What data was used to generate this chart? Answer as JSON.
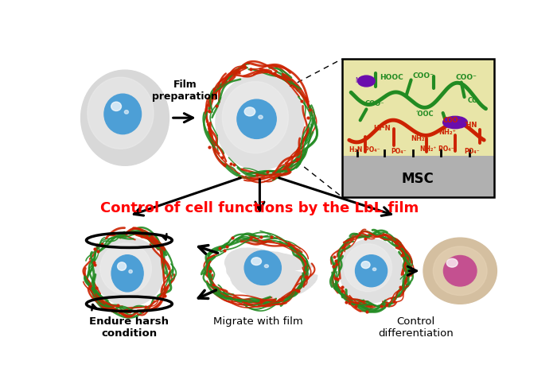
{
  "bg_color": "#ffffff",
  "title_text": "Control of cell functions by the LbL film",
  "title_color": "#ff0000",
  "title_fontsize": 13,
  "label_endure": "Endure harsh\ncondition",
  "label_migrate": "Migrate with film",
  "label_control": "Control\ndifferentiation",
  "label_film_prep": "Film\npreparation",
  "label_msc": "MSC",
  "cell_body_color": "#e0e0e0",
  "cell_nucleus_color": "#4d9fd6",
  "film_green": "#228B22",
  "film_red": "#cc2200",
  "arrow_color": "#111111",
  "inset_bg_top": "#e8e5a8",
  "inset_bg_bot": "#b0b0b0",
  "purple_color": "#6a0dad",
  "differentiated_body": "#d4bfa0",
  "differentiated_nucleus": "#c45090"
}
